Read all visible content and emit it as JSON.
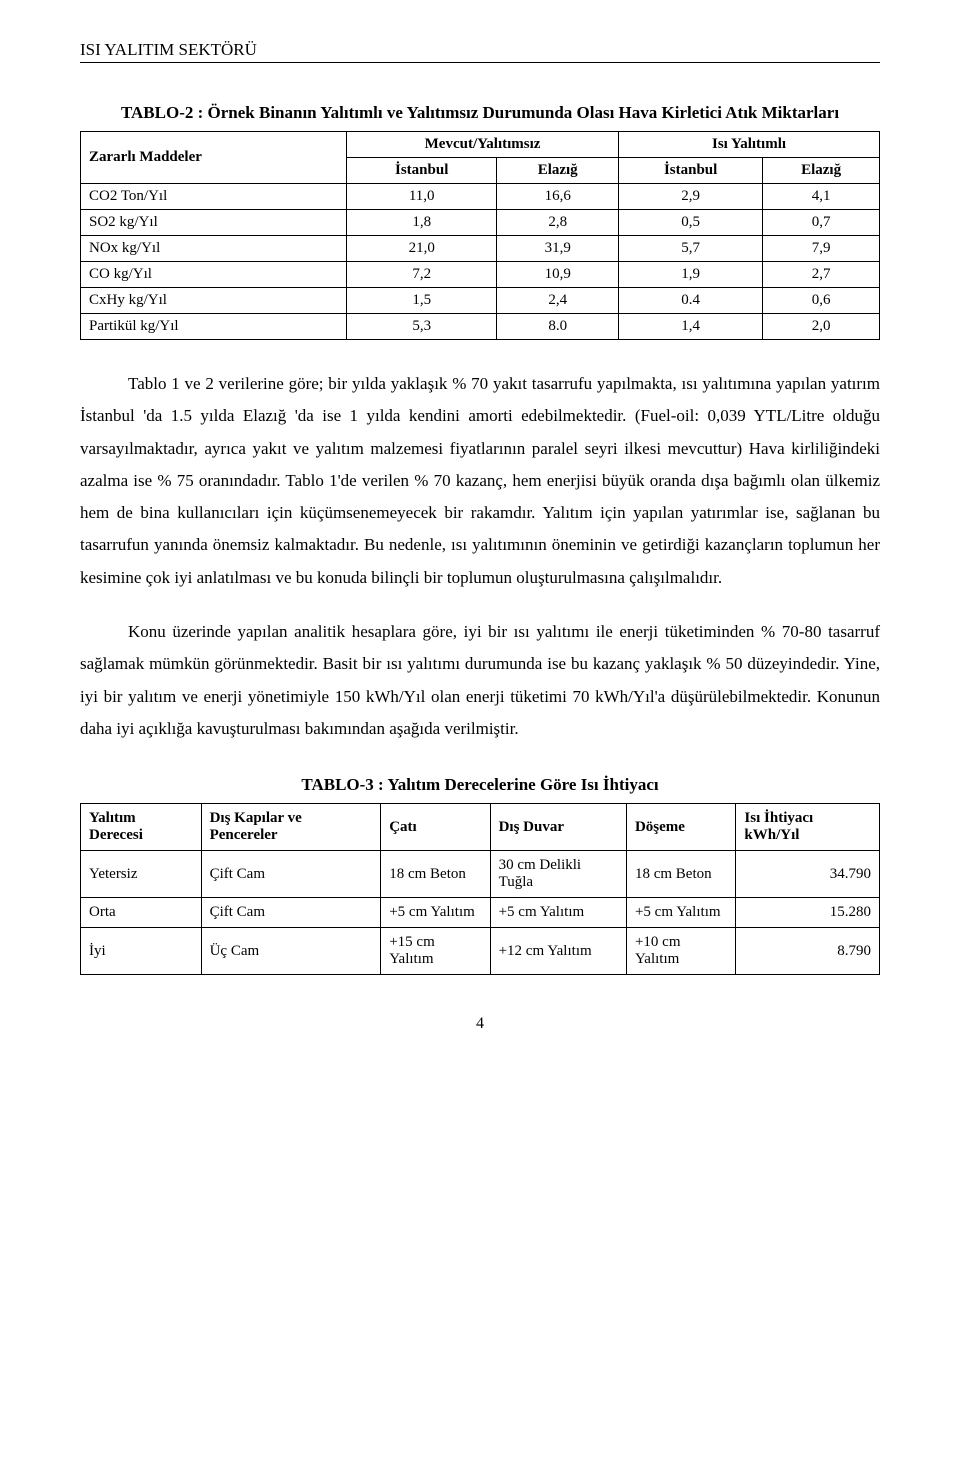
{
  "header": "ISI YALITIM SEKTÖRÜ",
  "table2": {
    "caption": "TABLO-2 : Örnek Binanın Yalıtımlı ve Yalıtımsız Durumunda Olası Hava Kirletici Atık Miktarları",
    "header_row1_col1": "Zararlı Maddeler",
    "header_row1_col2": "Mevcut/Yalıtımsız",
    "header_row1_col3": "Isı Yalıtımlı",
    "header_row2": [
      "İstanbul",
      "Elazığ",
      "İstanbul",
      "Elazığ"
    ],
    "rows": [
      {
        "label": "CO2 Ton/Yıl",
        "v": [
          "11,0",
          "16,6",
          "2,9",
          "4,1"
        ]
      },
      {
        "label": "SO2 kg/Yıl",
        "v": [
          "1,8",
          "2,8",
          "0,5",
          "0,7"
        ]
      },
      {
        "label": "NOx kg/Yıl",
        "v": [
          "21,0",
          "31,9",
          "5,7",
          "7,9"
        ]
      },
      {
        "label": "CO kg/Yıl",
        "v": [
          "7,2",
          "10,9",
          "1,9",
          "2,7"
        ]
      },
      {
        "label": "CxHy kg/Yıl",
        "v": [
          "1,5",
          "2,4",
          "0.4",
          "0,6"
        ]
      },
      {
        "label": "Partikül kg/Yıl",
        "v": [
          "5,3",
          "8.0",
          "1,4",
          "2,0"
        ]
      }
    ]
  },
  "para1": "Tablo 1 ve 2 verilerine göre; bir yılda yaklaşık % 70 yakıt tasarrufu yapılmakta, ısı yalıtımına yapılan yatırım İstanbul 'da 1.5 yılda Elazığ 'da ise 1 yılda kendini amorti edebilmektedir. (Fuel-oil: 0,039 YTL/Litre olduğu varsayılmaktadır, ayrıca yakıt ve yalıtım malzemesi fiyatlarının paralel seyri ilkesi mevcuttur) Hava kirliliğindeki azalma ise % 75 oranındadır. Tablo 1'de verilen % 70 kazanç, hem enerjisi büyük oranda dışa bağımlı olan ülkemiz hem de bina kullanıcıları için küçümsenemeyecek bir rakamdır. Yalıtım için yapılan yatırımlar ise, sağlanan bu tasarrufun yanında önemsiz kalmaktadır. Bu nedenle, ısı yalıtımının öneminin ve getirdiği kazançların toplumun her kesimine çok iyi anlatılması ve bu konuda bilinçli bir toplumun oluşturulmasına çalışılmalıdır.",
  "para2": "Konu üzerinde yapılan analitik hesaplara göre, iyi bir ısı yalıtımı ile enerji tüketiminden %   70-80 tasarruf sağlamak mümkün görünmektedir. Basit bir ısı yalıtımı durumunda ise bu kazanç yaklaşık % 50 düzeyindedir. Yine, iyi bir yalıtım ve enerji yönetimiyle 150 kWh/Yıl olan enerji tüketimi 70 kWh/Yıl'a düşürülebilmektedir. Konunun daha iyi açıklığa kavuşturulması bakımından aşağıda verilmiştir.",
  "table3": {
    "caption": "TABLO-3 : Yalıtım Derecelerine Göre Isı İhtiyacı",
    "columns": [
      "Yalıtım Derecesi",
      "Dış Kapılar ve Pencereler",
      "Çatı",
      "Dış Duvar",
      "Döşeme",
      "Isı İhtiyacı kWh/Yıl"
    ],
    "rows": [
      [
        "Yetersiz",
        "Çift Cam",
        "18 cm Beton",
        "30 cm Delikli Tuğla",
        "18 cm Beton",
        "34.790"
      ],
      [
        "Orta",
        "Çift Cam",
        "+5 cm Yalıtım",
        "+5 cm Yalıtım",
        "+5 cm Yalıtım",
        "15.280"
      ],
      [
        "İyi",
        "Üç Cam",
        "+15 cm Yalıtım",
        "+12 cm Yalıtım",
        "+10 cm Yalıtım",
        "8.790"
      ]
    ]
  },
  "page_number": "4"
}
